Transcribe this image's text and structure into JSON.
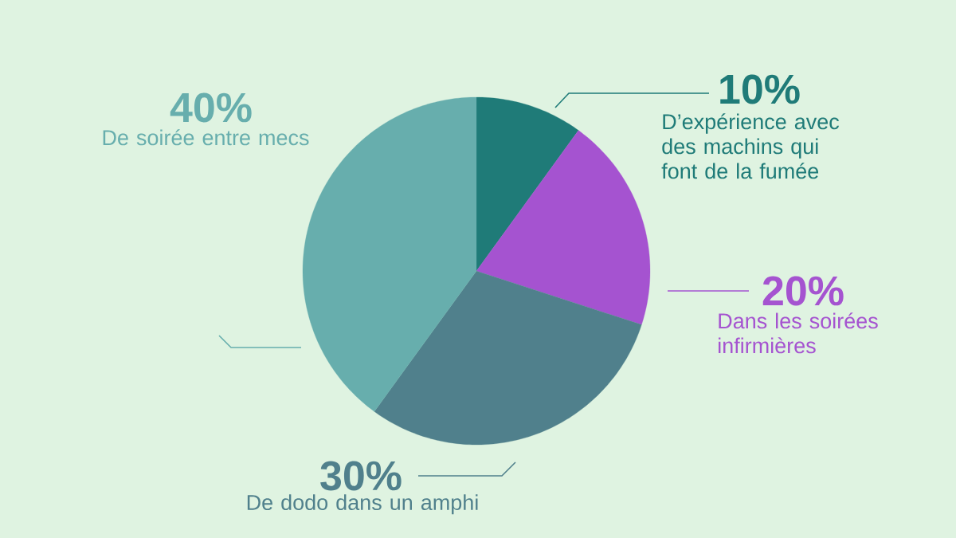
{
  "chart_data": {
    "type": "pie",
    "categories": [
      "D’expérience avec des machins qui font de la fumée",
      "Dans les soirées infirmières",
      "De dodo dans un amphi",
      "De soirée entre mecs"
    ],
    "values": [
      10,
      20,
      30,
      40
    ],
    "colors": [
      "#1f7b78",
      "#a553d0",
      "#50808c",
      "#67aead"
    ],
    "value_labels": [
      "10%",
      "20%",
      "30%",
      "40%"
    ]
  }
}
